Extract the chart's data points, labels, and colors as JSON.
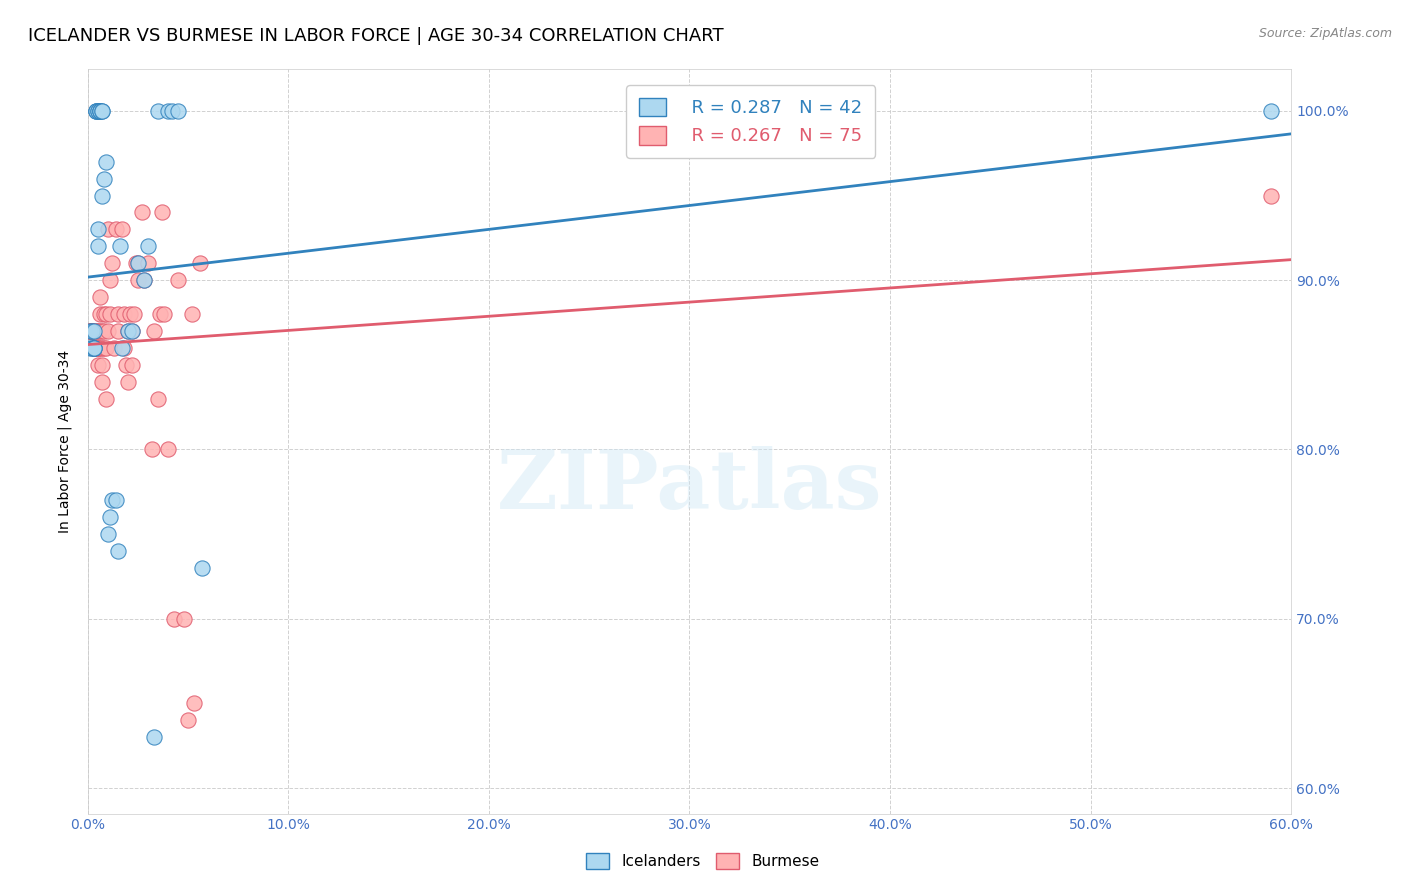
{
  "title": "ICELANDER VS BURMESE IN LABOR FORCE | AGE 30-34 CORRELATION CHART",
  "source": "Source: ZipAtlas.com",
  "ylabel": "In Labor Force | Age 30-34",
  "x_min": 0.0,
  "x_max": 0.6,
  "y_min": 0.585,
  "y_max": 1.025,
  "x_ticks": [
    0.0,
    0.1,
    0.2,
    0.3,
    0.4,
    0.5,
    0.6
  ],
  "y_ticks": [
    0.6,
    0.7,
    0.8,
    0.9,
    1.0
  ],
  "x_tick_labels": [
    "0.0%",
    "10.0%",
    "20.0%",
    "30.0%",
    "40.0%",
    "50.0%",
    "60.0%"
  ],
  "y_tick_labels": [
    "60.0%",
    "70.0%",
    "80.0%",
    "90.0%",
    "100.0%"
  ],
  "icelander_color": "#add8f0",
  "burmese_color": "#ffb3b3",
  "icelander_line_color": "#3182bd",
  "burmese_line_color": "#e05c6e",
  "legend_r_ice": "R = 0.287",
  "legend_n_ice": "N = 42",
  "legend_r_bur": "R = 0.267",
  "legend_n_bur": "N = 75",
  "watermark": "ZIPatlas",
  "icelander_x": [
    0.001,
    0.001,
    0.002,
    0.002,
    0.003,
    0.003,
    0.003,
    0.003,
    0.004,
    0.004,
    0.004,
    0.005,
    0.005,
    0.005,
    0.005,
    0.006,
    0.006,
    0.006,
    0.007,
    0.007,
    0.007,
    0.008,
    0.009,
    0.01,
    0.011,
    0.012,
    0.014,
    0.015,
    0.016,
    0.017,
    0.02,
    0.022,
    0.025,
    0.028,
    0.03,
    0.033,
    0.035,
    0.04,
    0.042,
    0.045,
    0.057,
    0.59
  ],
  "icelander_y": [
    0.86,
    0.87,
    0.87,
    0.86,
    0.87,
    0.86,
    0.86,
    0.86,
    1.0,
    1.0,
    1.0,
    0.92,
    0.93,
    1.0,
    1.0,
    1.0,
    1.0,
    1.0,
    1.0,
    1.0,
    0.95,
    0.96,
    0.97,
    0.75,
    0.76,
    0.77,
    0.77,
    0.74,
    0.92,
    0.86,
    0.87,
    0.87,
    0.91,
    0.9,
    0.92,
    0.63,
    1.0,
    1.0,
    1.0,
    1.0,
    0.73,
    1.0
  ],
  "burmese_x": [
    0.001,
    0.001,
    0.001,
    0.002,
    0.002,
    0.002,
    0.002,
    0.002,
    0.003,
    0.003,
    0.003,
    0.003,
    0.003,
    0.004,
    0.004,
    0.004,
    0.004,
    0.005,
    0.005,
    0.005,
    0.005,
    0.006,
    0.006,
    0.006,
    0.006,
    0.007,
    0.007,
    0.007,
    0.007,
    0.008,
    0.008,
    0.008,
    0.009,
    0.009,
    0.009,
    0.01,
    0.01,
    0.011,
    0.011,
    0.012,
    0.013,
    0.014,
    0.015,
    0.015,
    0.017,
    0.018,
    0.018,
    0.019,
    0.02,
    0.02,
    0.021,
    0.022,
    0.022,
    0.023,
    0.024,
    0.025,
    0.025,
    0.027,
    0.028,
    0.03,
    0.032,
    0.033,
    0.035,
    0.036,
    0.037,
    0.038,
    0.04,
    0.043,
    0.045,
    0.048,
    0.05,
    0.052,
    0.053,
    0.056,
    0.59
  ],
  "burmese_y": [
    0.87,
    0.87,
    0.87,
    0.87,
    0.87,
    0.87,
    0.87,
    0.87,
    0.86,
    0.86,
    0.86,
    0.86,
    0.86,
    0.86,
    0.86,
    0.87,
    0.87,
    0.85,
    0.86,
    0.86,
    0.87,
    0.86,
    0.87,
    0.88,
    0.89,
    0.84,
    0.85,
    0.86,
    0.87,
    0.86,
    0.87,
    0.88,
    0.83,
    0.86,
    0.88,
    0.87,
    0.93,
    0.88,
    0.9,
    0.91,
    0.86,
    0.93,
    0.87,
    0.88,
    0.93,
    0.86,
    0.88,
    0.85,
    0.84,
    0.87,
    0.88,
    0.85,
    0.87,
    0.88,
    0.91,
    0.9,
    0.91,
    0.94,
    0.9,
    0.91,
    0.8,
    0.87,
    0.83,
    0.88,
    0.94,
    0.88,
    0.8,
    0.7,
    0.9,
    0.7,
    0.64,
    0.88,
    0.65,
    0.91,
    0.95
  ],
  "background_color": "#ffffff",
  "grid_color": "#cccccc",
  "axis_color": "#4472c4",
  "title_fontsize": 13,
  "label_fontsize": 10,
  "tick_fontsize": 10
}
